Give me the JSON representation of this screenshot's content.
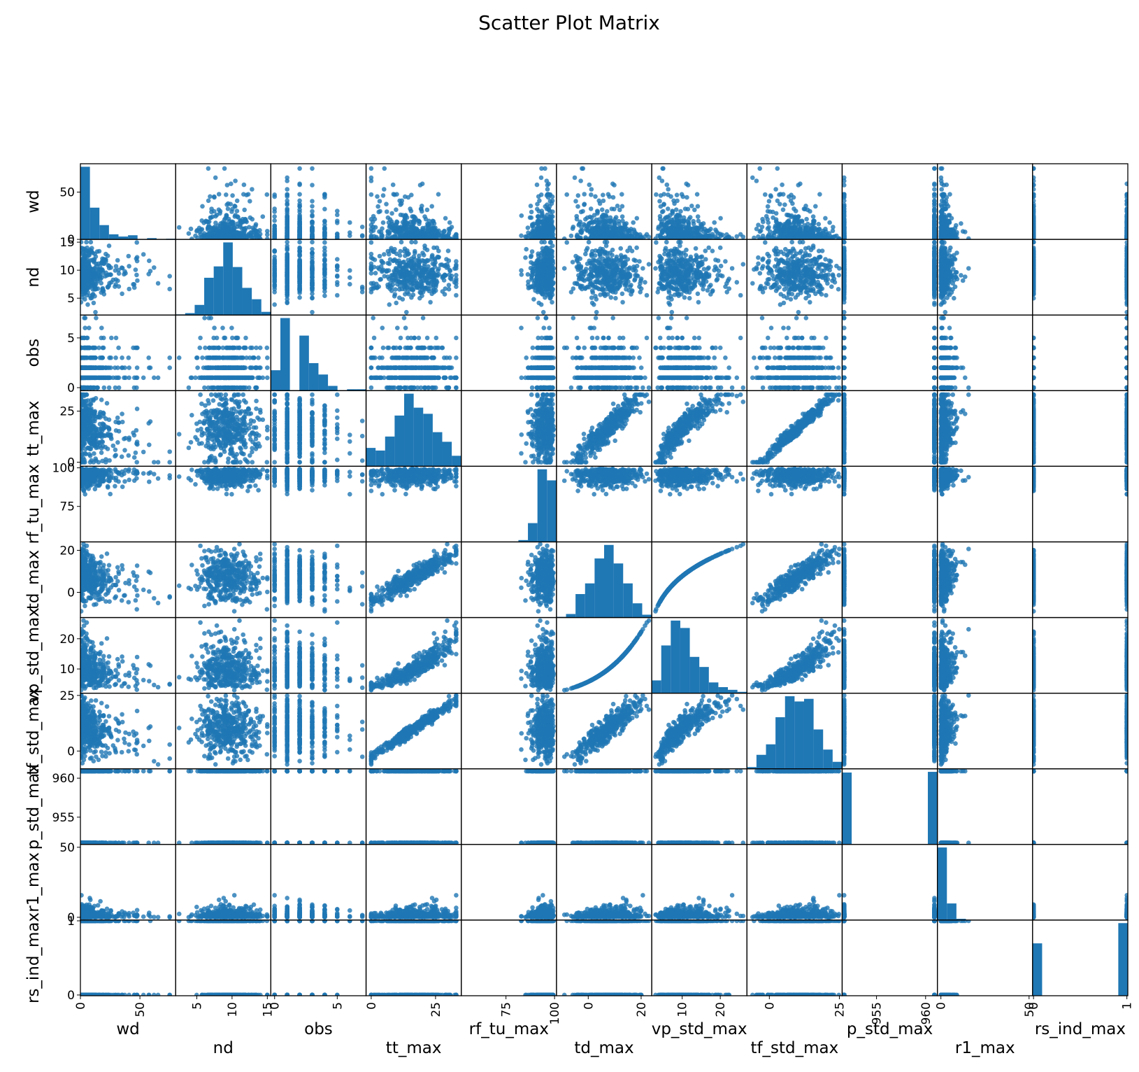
{
  "title": "Scatter Plot Matrix",
  "colors": {
    "marker": "#1f77b4",
    "axes": "#000000",
    "background": "#ffffff"
  },
  "chart_data": {
    "type": "scatter",
    "subtype": "scatter_matrix",
    "diagonal": "histogram",
    "title": "Scatter Plot Matrix",
    "variables": [
      {
        "name": "wd",
        "range": [
          0,
          80
        ],
        "ticks": [
          0,
          50
        ],
        "dist": "exp",
        "mean": 8
      },
      {
        "name": "nd",
        "range": [
          2,
          15.5
        ],
        "ticks": [
          5,
          10,
          15
        ],
        "dist": "normal",
        "mean": 9.5,
        "sd": 2.2
      },
      {
        "name": "obs",
        "range": [
          -0.3,
          7.3
        ],
        "ticks": [
          0,
          5
        ],
        "dist": "discrete",
        "levels": [
          0,
          1,
          2,
          3,
          4,
          5,
          6,
          7
        ]
      },
      {
        "name": "tt_max",
        "range": [
          -2,
          35
        ],
        "ticks": [
          0,
          25
        ],
        "dist": "uniform",
        "min": 0,
        "max": 33
      },
      {
        "name": "rf_tu_max",
        "range": [
          52,
          101
        ],
        "ticks": [
          75,
          100
        ],
        "dist": "leftskew",
        "max": 100
      },
      {
        "name": "td_max",
        "range": [
          -12,
          24
        ],
        "ticks": [
          0,
          20
        ],
        "dist": "fromtt"
      },
      {
        "name": "vp_std_max",
        "range": [
          2,
          27
        ],
        "ticks": [
          10,
          20
        ],
        "dist": "fromtd"
      },
      {
        "name": "tf_std_max",
        "range": [
          -8,
          26
        ],
        "ticks": [
          0,
          25
        ],
        "dist": "fromtt2"
      },
      {
        "name": "p_std_max",
        "range": [
          951.5,
          961.2
        ],
        "ticks": [
          955,
          960
        ],
        "dist": "binary",
        "values": [
          951.7,
          960.9
        ]
      },
      {
        "name": "r1_max",
        "range": [
          -2,
          52
        ],
        "ticks": [
          0,
          50
        ],
        "dist": "exp",
        "mean": 1.5
      },
      {
        "name": "rs_ind_max",
        "range": [
          -0.01,
          1.01
        ],
        "ticks": [
          0,
          1
        ],
        "dist": "binary",
        "values": [
          0,
          1
        ]
      }
    ]
  }
}
